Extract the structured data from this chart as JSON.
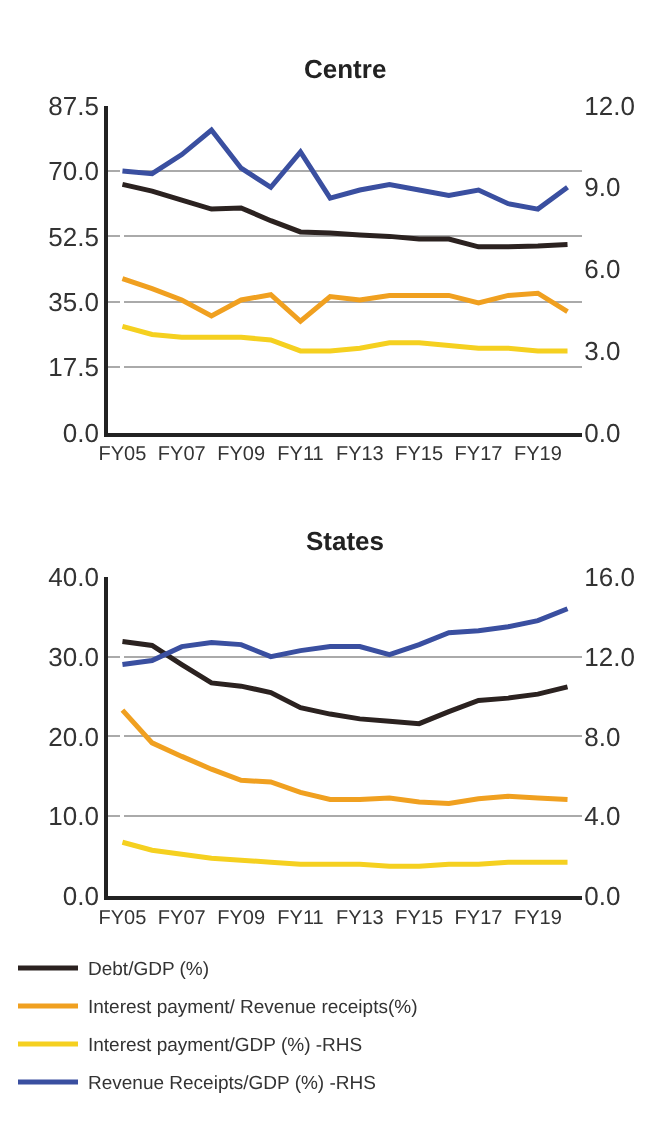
{
  "chart_data": [
    {
      "type": "line",
      "title": "Centre",
      "categories": [
        "FY05",
        null,
        "FY07",
        null,
        "FY09",
        null,
        "FY11",
        null,
        "FY13",
        null,
        "FY15",
        null,
        "FY17",
        null,
        "FY19",
        null
      ],
      "ylim": [
        0,
        87.5
      ],
      "yticks": [
        {
          "value": 0,
          "label": "0.0"
        },
        17.5,
        {
          "value": 35,
          "label": "35.0"
        },
        52.5,
        {
          "value": 70,
          "label": "70.0"
        },
        87.5
      ],
      "y2lim": [
        0,
        12
      ],
      "y2ticks": [
        {
          "value": 0,
          "label": "0.0"
        },
        {
          "value": 3,
          "label": "3.0"
        },
        {
          "value": 6,
          "label": "6.0"
        },
        {
          "value": 9,
          "label": "9.0"
        },
        {
          "value": 12,
          "label": "12.0"
        }
      ],
      "grid": "y",
      "legend": "bottom",
      "series": [
        {
          "name": "Debt/GDP (%)",
          "color": "#2b2220",
          "values": [
            66.4,
            64.6,
            62.2,
            59.8,
            60.1,
            56.7,
            53.7,
            53.4,
            52.9,
            52.5,
            51.8,
            51.8,
            49.7,
            49.7,
            49.9,
            50.3
          ]
        },
        {
          "name": "Interest payment/ Revenue receipts(%)",
          "color": "#f0a020",
          "values": [
            41.2,
            38.5,
            35.5,
            31.2,
            35.5,
            36.9,
            29.8,
            36.4,
            35.5,
            36.7,
            36.7,
            36.7,
            34.7,
            36.7,
            37.3,
            32.4
          ]
        },
        {
          "name": "Interest payment/GDP (%) -RHS",
          "color": "#f5d020",
          "axis": "y2",
          "values": [
            3.9,
            3.6,
            3.5,
            3.5,
            3.5,
            3.4,
            3.0,
            3.0,
            3.1,
            3.3,
            3.3,
            3.2,
            3.1,
            3.1,
            3.0,
            3.0
          ]
        },
        {
          "name": "Revenue Receipts/GDP (%) -RHS",
          "color": "#3a4fa0",
          "axis": "y2",
          "values": [
            9.6,
            9.5,
            10.2,
            11.1,
            9.7,
            9.0,
            10.3,
            8.6,
            8.9,
            9.1,
            8.9,
            8.7,
            8.9,
            8.4,
            8.2,
            9.0
          ]
        }
      ]
    },
    {
      "type": "line",
      "title": "States",
      "categories": [
        "FY05",
        null,
        "FY07",
        null,
        "FY09",
        null,
        "FY11",
        null,
        "FY13",
        null,
        "FY15",
        null,
        "FY17",
        null,
        "FY19",
        null
      ],
      "ylim": [
        0,
        40
      ],
      "yticks": [
        {
          "value": 0,
          "label": "0.0"
        },
        {
          "value": 10,
          "label": "10.0"
        },
        {
          "value": 20,
          "label": "20.0"
        },
        {
          "value": 30,
          "label": "30.0"
        },
        {
          "value": 40,
          "label": "40.0"
        }
      ],
      "y2lim": [
        0,
        16
      ],
      "y2ticks": [
        {
          "value": 0,
          "label": "0.0"
        },
        {
          "value": 4,
          "label": "4.0"
        },
        {
          "value": 8,
          "label": "8.0"
        },
        {
          "value": 12,
          "label": "12.0"
        },
        {
          "value": 16,
          "label": "16.0"
        }
      ],
      "grid": "y",
      "series": [
        {
          "color": "#2b2220",
          "values": [
            31.9,
            31.4,
            29.0,
            26.7,
            26.3,
            25.5,
            23.6,
            22.8,
            22.2,
            21.9,
            21.6,
            23.1,
            24.5,
            24.8,
            25.3,
            26.2
          ]
        },
        {
          "color": "#f0a020",
          "values": [
            23.3,
            19.2,
            17.5,
            15.9,
            14.5,
            14.3,
            13.0,
            12.1,
            12.1,
            12.3,
            11.8,
            11.6,
            12.2,
            12.5,
            12.3,
            12.1
          ]
        },
        {
          "color": "#f5d020",
          "axis": "y2",
          "values": [
            2.7,
            2.3,
            2.1,
            1.9,
            1.8,
            1.7,
            1.6,
            1.6,
            1.6,
            1.5,
            1.5,
            1.6,
            1.6,
            1.7,
            1.7,
            1.7
          ]
        },
        {
          "color": "#3a4fa0",
          "axis": "y2",
          "values": [
            11.6,
            11.8,
            12.5,
            12.7,
            12.6,
            12.0,
            12.3,
            12.5,
            12.5,
            12.1,
            12.6,
            13.2,
            13.3,
            13.5,
            13.8,
            14.4
          ]
        }
      ]
    }
  ]
}
